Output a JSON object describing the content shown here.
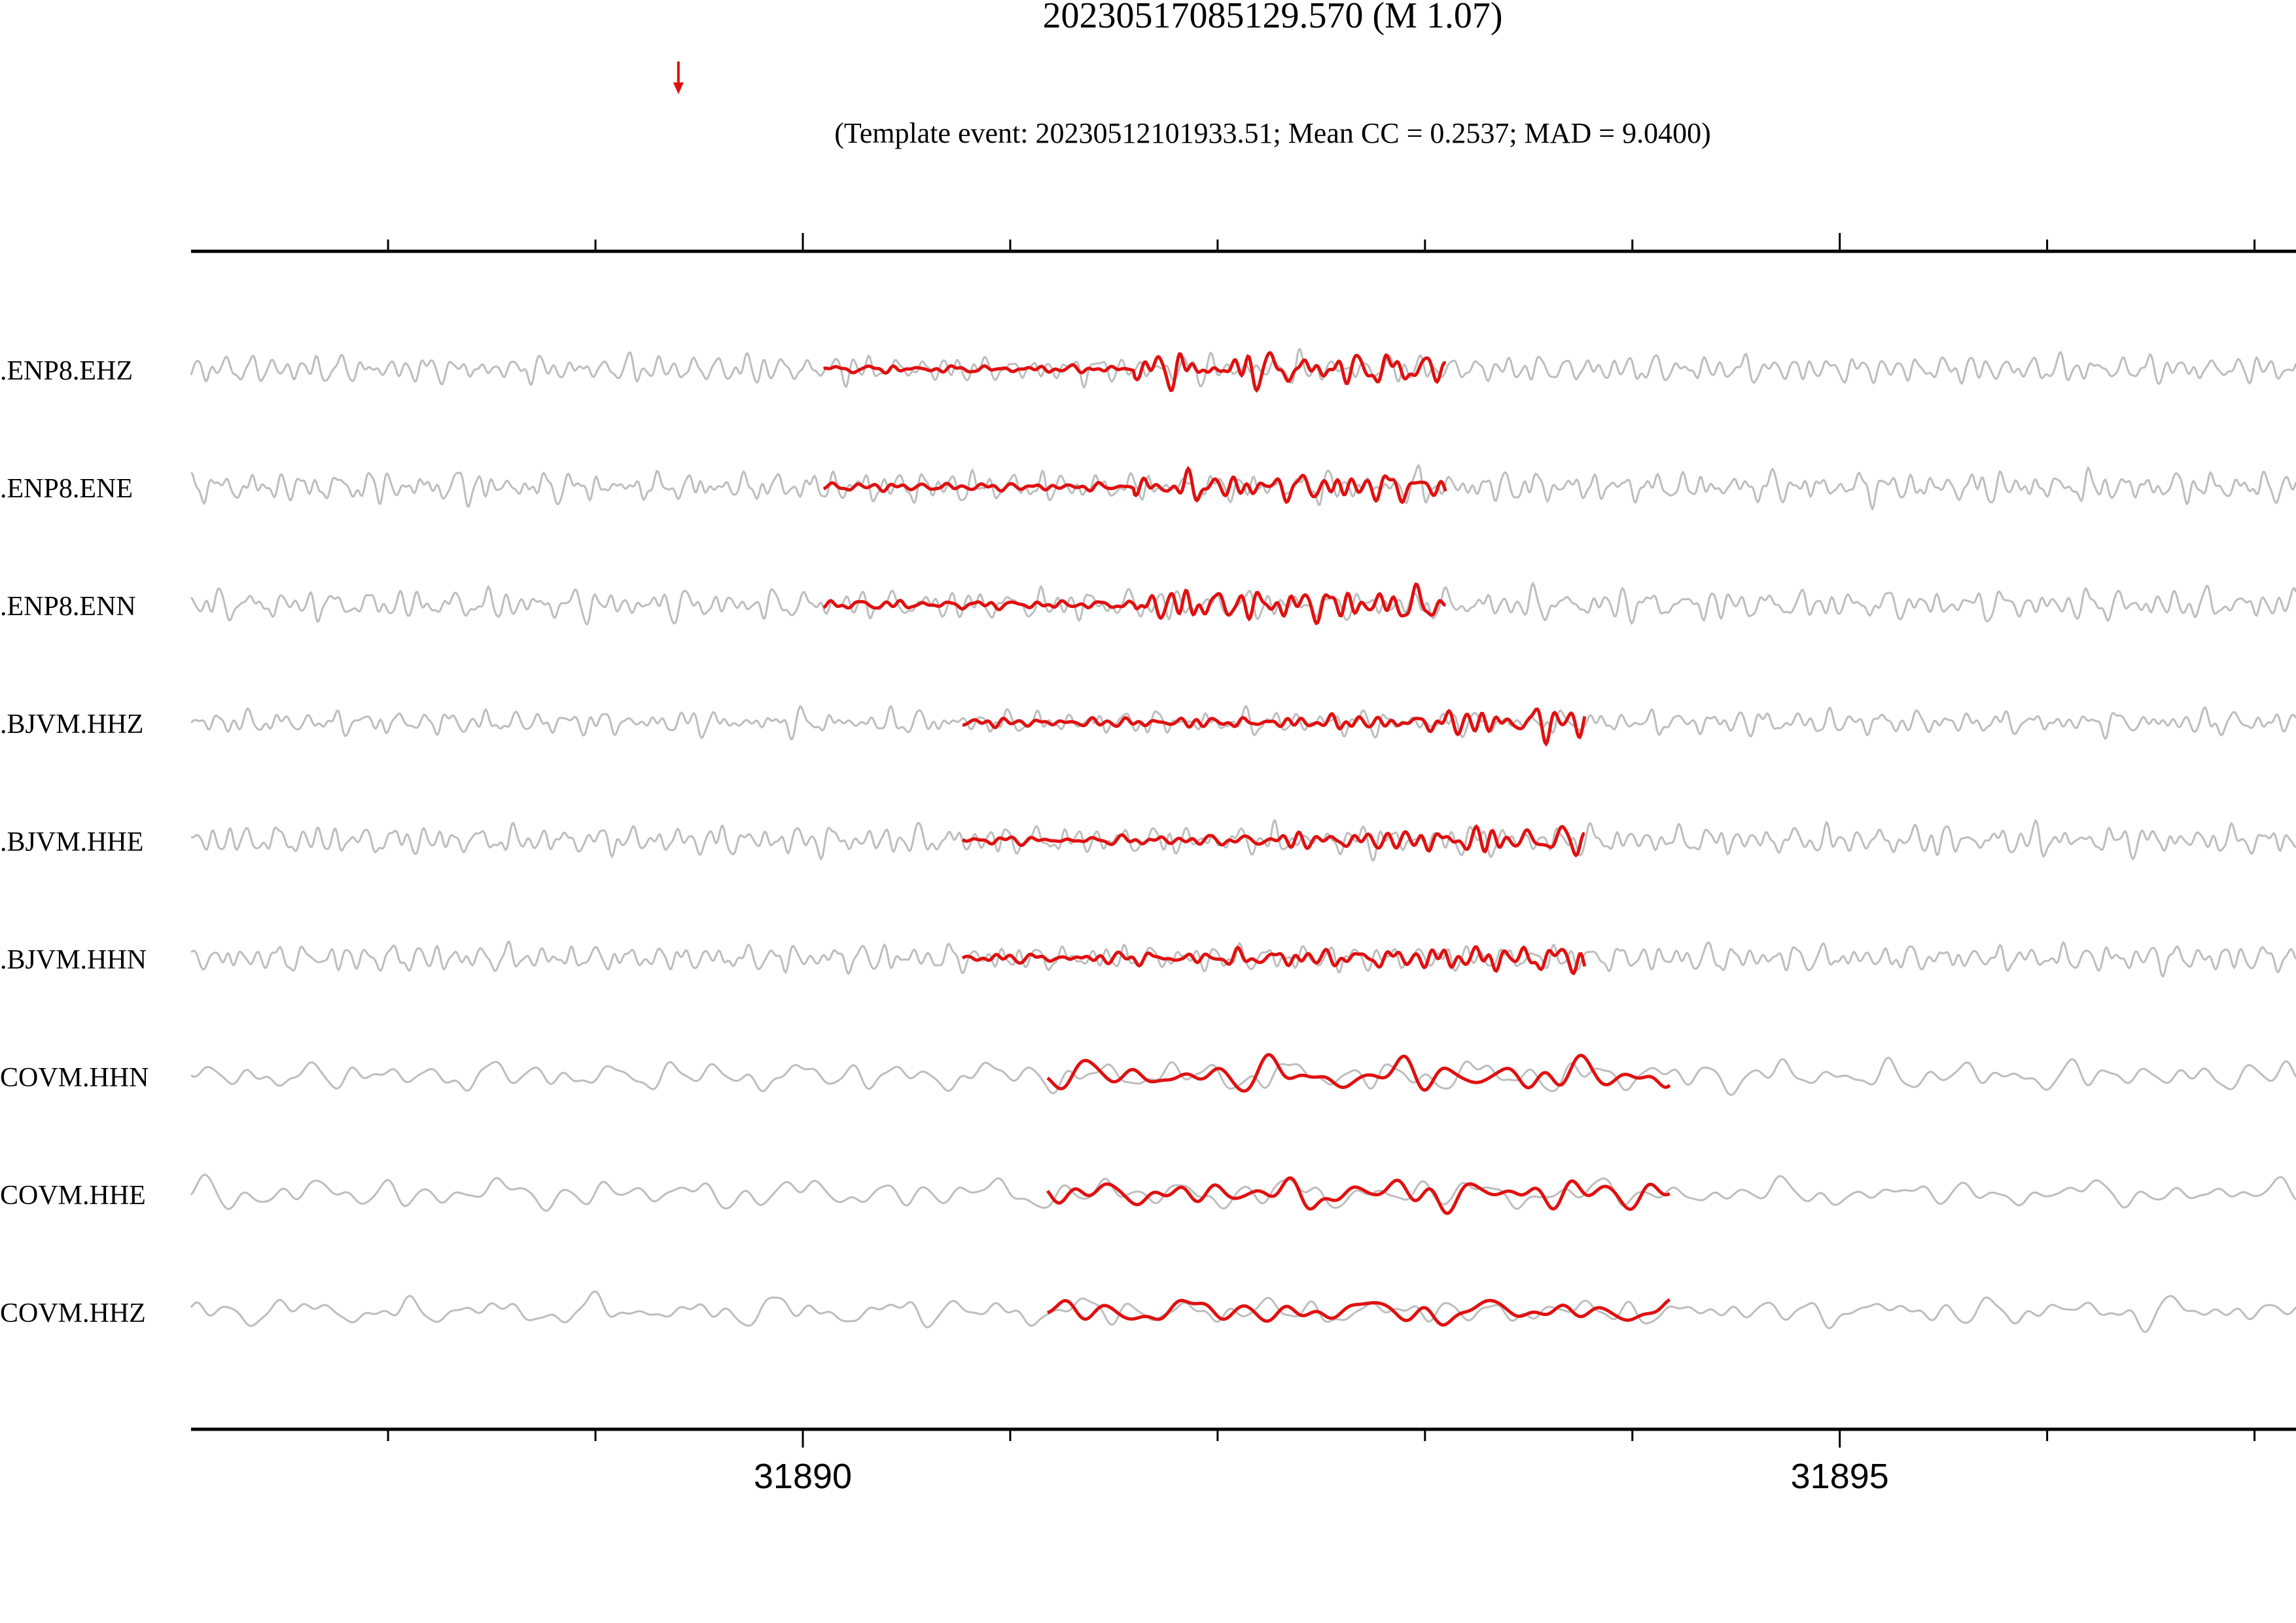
{
  "title": "20230517085129.570 (M 1.07)",
  "subtitle": "(Template event: 20230512101933.51; Mean CC = 0.2537; MAD = 9.0400)",
  "colors": {
    "background": "#ffffff",
    "continuous": "#bdbdbd",
    "template": "#e01010",
    "axis": "#000000"
  },
  "chart_data": {
    "type": "line",
    "xlim": [
      31887.05,
      31897.2
    ],
    "major_ticks": [
      31890,
      31895
    ],
    "minor_tick_step": 1,
    "marker_time": 31889.4,
    "grid": false,
    "traces": [
      {
        "label": ".ENP8.EHZ",
        "template_start": 31890.1,
        "template_end": 31893.1
      },
      {
        "label": ".ENP8.ENE",
        "template_start": 31890.1,
        "template_end": 31893.1
      },
      {
        "label": ".ENP8.ENN",
        "template_start": 31890.1,
        "template_end": 31893.1
      },
      {
        "label": ".BJVM.HHZ",
        "template_start": 31890.77,
        "template_end": 31893.77
      },
      {
        "label": ".BJVM.HHE",
        "template_start": 31890.77,
        "template_end": 31893.77
      },
      {
        "label": ".BJVM.HHN",
        "template_start": 31890.77,
        "template_end": 31893.77
      },
      {
        "label": "COVM.HHN",
        "template_start": 31891.18,
        "template_end": 31894.18
      },
      {
        "label": "COVM.HHE",
        "template_start": 31891.18,
        "template_end": 31894.18
      },
      {
        "label": "COVM.HHZ",
        "template_start": 31891.18,
        "template_end": 31894.18
      }
    ]
  }
}
